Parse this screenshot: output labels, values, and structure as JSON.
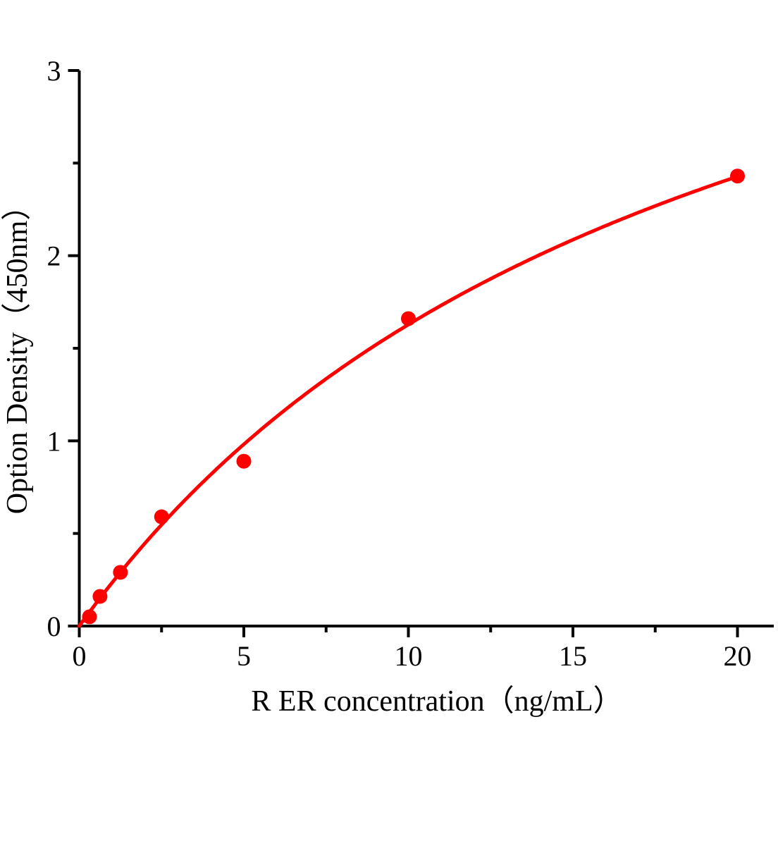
{
  "figure": {
    "background": "#ffffff"
  },
  "chart_data": {
    "type": "scatter",
    "title": "",
    "xlabel": "R ER concentration（ng/mL）",
    "ylabel": "Option Density（450nm）",
    "xlim": [
      0,
      21.1
    ],
    "ylim": [
      0,
      3
    ],
    "x_major_ticks": [
      0,
      5,
      10,
      15,
      20
    ],
    "x_minor_ticks": [
      2.5,
      7.5,
      12.5,
      17.5
    ],
    "y_major_ticks": [
      0,
      1,
      2,
      3
    ],
    "y_minor_ticks": [
      0.5,
      1.5,
      2.5
    ],
    "grid": false,
    "legend": "none",
    "series": [
      {
        "name": "standard-points",
        "type": "scatter",
        "marker": "circle",
        "color": "#ff0000",
        "x": [
          0.31,
          0.63,
          1.25,
          2.5,
          5,
          10,
          20
        ],
        "y": [
          0.05,
          0.16,
          0.29,
          0.59,
          0.89,
          1.66,
          2.43
        ]
      },
      {
        "name": "fit-curve",
        "type": "line",
        "color": "#ff0000",
        "fit_model": "y = a*x/(b+x)",
        "a": 4.77,
        "b": 19.3,
        "x_start": 0,
        "x_end": 20
      }
    ],
    "colors": {
      "accent": "#ff0000",
      "axis": "#000000",
      "background": "#ffffff"
    }
  }
}
